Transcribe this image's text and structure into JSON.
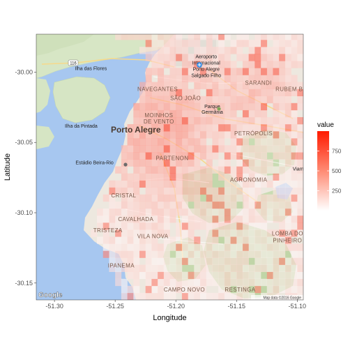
{
  "chart_data": {
    "type": "heatmap",
    "basemap": "Google terrain map of Porto Alegre",
    "xlabel": "Longitude",
    "ylabel": "Latitude",
    "xlim": [
      -51.315,
      -51.095
    ],
    "ylim": [
      -30.162,
      -29.973
    ],
    "x_ticks": [
      -51.3,
      -51.25,
      -51.2,
      -51.15,
      -51.1
    ],
    "x_tick_labels": [
      "-51.30",
      "-51.25",
      "-51.20",
      "-51.15",
      "-51.10"
    ],
    "y_ticks": [
      -30.0,
      -30.05,
      -30.1,
      -30.15
    ],
    "y_tick_labels": [
      "-30.00",
      "-30.05",
      "-30.10",
      "-30.15"
    ],
    "legend": {
      "title": "value",
      "breaks": [
        250,
        500,
        750
      ],
      "break_labels": [
        "250",
        "500",
        "750"
      ],
      "range": [
        0,
        1000
      ],
      "low_color": "#ffffff",
      "high_color": "#ff1a00",
      "position": "right"
    },
    "grid_resolution_deg": 0.005
  },
  "map": {
    "labels": [
      {
        "text": "Aeroporto",
        "lon": -51.175,
        "lat": -29.99
      },
      {
        "text": "Internacional",
        "lon": -51.175,
        "lat": -29.9945
      },
      {
        "text": "Porto Alegre",
        "lon": -51.175,
        "lat": -29.999
      },
      {
        "text": "Salgado Filho",
        "lon": -51.175,
        "lat": -30.0035
      },
      {
        "text": "Ilha das Flores",
        "lon": -51.27,
        "lat": -29.9985
      },
      {
        "text": "NAVEGANTES",
        "lon": -51.215,
        "lat": -30.0135
      },
      {
        "text": "SARANDI",
        "lon": -51.132,
        "lat": -30.009
      },
      {
        "text": "RUBEM BE",
        "lon": -51.105,
        "lat": -30.0135
      },
      {
        "text": "SÃO JOÃO",
        "lon": -51.192,
        "lat": -30.02
      },
      {
        "text": "Parque",
        "lon": -51.17,
        "lat": -30.0255
      },
      {
        "text": "Germânia",
        "lon": -51.17,
        "lat": -30.0295
      },
      {
        "text": "MOINHOS",
        "lon": -51.214,
        "lat": -30.032
      },
      {
        "text": "DE VENTO",
        "lon": -51.214,
        "lat": -30.0365
      },
      {
        "text": "Ilha da Pintada",
        "lon": -51.278,
        "lat": -30.0395
      },
      {
        "text": "Porto Alegre",
        "lon": -51.233,
        "lat": -30.043
      },
      {
        "text": "PETRÓPOLIS",
        "lon": -51.136,
        "lat": -30.045
      },
      {
        "text": "Estádio Beira-Rio",
        "lon": -51.267,
        "lat": -30.0655
      },
      {
        "text": "PARTENON",
        "lon": -51.203,
        "lat": -30.0625
      },
      {
        "text": "AGRONOMIA",
        "lon": -51.14,
        "lat": -30.078
      },
      {
        "text": "Viamão",
        "lon": -51.097,
        "lat": -30.07
      },
      {
        "text": "CRISTAL",
        "lon": -51.243,
        "lat": -30.089
      },
      {
        "text": "CAVALHADA",
        "lon": -51.233,
        "lat": -30.106
      },
      {
        "text": "TRISTEZA",
        "lon": -51.256,
        "lat": -30.114
      },
      {
        "text": "VILA NOVA",
        "lon": -51.219,
        "lat": -30.118
      },
      {
        "text": "LOMBA DO",
        "lon": -51.108,
        "lat": -30.116
      },
      {
        "text": "PINHEIRO",
        "lon": -51.108,
        "lat": -30.121
      },
      {
        "text": "IPANEMA",
        "lon": -51.245,
        "lat": -30.139
      },
      {
        "text": "CAMPO NOVO",
        "lon": -51.193,
        "lat": -30.156
      },
      {
        "text": "RESTINGA",
        "lon": -51.147,
        "lat": -30.156
      }
    ],
    "road_badge": "116",
    "google_logo": "Google",
    "attribution": "Map data ©2016 Google"
  }
}
